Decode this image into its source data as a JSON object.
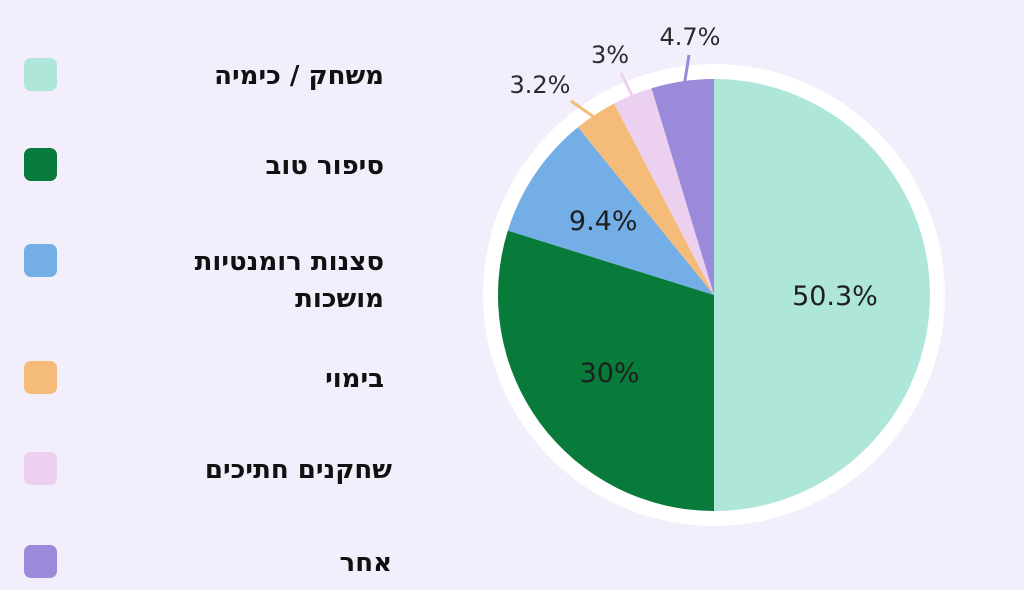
{
  "chart_data": {
    "type": "pie",
    "title": "",
    "slices": [
      {
        "label": "משחק / כימיה",
        "value": 50.3,
        "value_label": "50.3%",
        "color": "#aee6d9"
      },
      {
        "label": "סיפור טוב",
        "value": 30,
        "value_label": "30%",
        "color": "#087a3a"
      },
      {
        "label": "סצנות רומנטיות מושכות",
        "value": 9.4,
        "value_label": "9.4%",
        "color": "#74aee6"
      },
      {
        "label": "בימוי",
        "value": 3.2,
        "value_label": "3.2%",
        "color": "#f4bc78"
      },
      {
        "label": "שחקנים חתיכים",
        "value": 3,
        "value_label": "3%",
        "color": "#ecd0ef"
      },
      {
        "label": "אחר",
        "value": 4.7,
        "value_label": "4.7%",
        "color": "#9a8ad9"
      }
    ],
    "legend_position": "left"
  }
}
